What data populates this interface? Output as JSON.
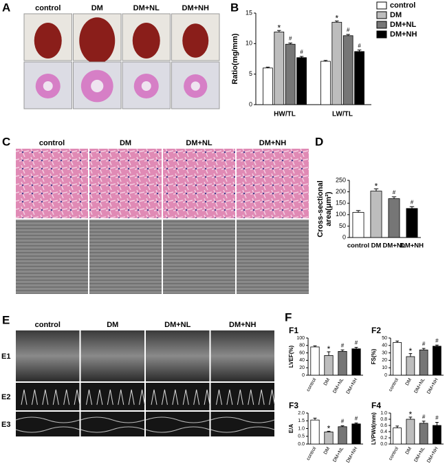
{
  "images": [
    {
      "panel": "A",
      "columns": [
        "control",
        "DM",
        "DM+NL",
        "DM+NH"
      ]
    },
    {
      "panel": "C",
      "columns": [
        "control",
        "DM",
        "DM+NL",
        "DM+NH"
      ]
    },
    {
      "panel": "E",
      "columns": [
        "control",
        "DM",
        "DM+NL",
        "DM+NH"
      ],
      "rows": [
        "E1",
        "E2",
        "E3"
      ]
    }
  ],
  "chart_data": [
    {
      "panel": "B",
      "type": "bar",
      "ylabel": [
        "Ratio(mg/mm)"
      ],
      "categories": [
        "HW/TL",
        "LW/TL"
      ],
      "series": [
        {
          "name": "control",
          "color": "#ffffff",
          "values": [
            6.0,
            7.1
          ],
          "errors": [
            0.15,
            0.15
          ]
        },
        {
          "name": "DM",
          "color": "#bdbdbd",
          "values": [
            11.9,
            13.5
          ],
          "errors": [
            0.25,
            0.2
          ],
          "annotations": [
            "*",
            "*"
          ]
        },
        {
          "name": "DM+NL",
          "color": "#767676",
          "values": [
            9.9,
            11.3
          ],
          "errors": [
            0.2,
            0.2
          ],
          "annotations": [
            "#",
            "#"
          ]
        },
        {
          "name": "DM+NH",
          "color": "#000000",
          "values": [
            7.7,
            8.7
          ],
          "errors": [
            0.2,
            0.25
          ],
          "annotations": [
            "#",
            "#"
          ]
        }
      ],
      "ylim": [
        0,
        15
      ],
      "yticks": [
        0,
        5,
        10,
        15
      ],
      "legend": "right"
    },
    {
      "panel": "D",
      "type": "bar",
      "ylabel": [
        "Cross-sectional",
        "area(μm²)"
      ],
      "categories": [
        "control",
        "DM",
        "DM+NL",
        "DM+NH"
      ],
      "values": [
        110,
        203,
        170,
        127
      ],
      "errors": [
        8,
        10,
        8,
        8
      ],
      "annotations": [
        null,
        "*",
        "#",
        "#"
      ],
      "colors": [
        "#ffffff",
        "#bdbdbd",
        "#767676",
        "#000000"
      ],
      "ylim": [
        0,
        250
      ],
      "yticks": [
        0,
        50,
        100,
        150,
        200,
        250
      ]
    },
    {
      "panel": "F",
      "title": "F1",
      "type": "bar",
      "ylabel": [
        "LVEF(%)"
      ],
      "categories": [
        "control",
        "DM",
        "DM+NL",
        "DM+NH"
      ],
      "values": [
        76,
        53,
        64,
        71
      ],
      "errors": [
        3,
        10,
        4,
        4
      ],
      "annotations": [
        null,
        "*",
        "#",
        "#"
      ],
      "colors": [
        "#ffffff",
        "#bdbdbd",
        "#767676",
        "#000000"
      ],
      "ylim": [
        0,
        100
      ],
      "yticks": [
        0,
        20,
        40,
        60,
        80,
        100
      ]
    },
    {
      "title": "F2",
      "type": "bar",
      "ylabel": [
        "FS(%)"
      ],
      "categories": [
        "control",
        "DM",
        "DM+NL",
        "DM+NH"
      ],
      "values": [
        44,
        25,
        34,
        39
      ],
      "errors": [
        2,
        4,
        2,
        1.5
      ],
      "annotations": [
        null,
        "*",
        "#",
        "#"
      ],
      "colors": [
        "#ffffff",
        "#bdbdbd",
        "#767676",
        "#000000"
      ],
      "ylim": [
        0,
        50
      ],
      "yticks": [
        0,
        10,
        20,
        30,
        40,
        50
      ]
    },
    {
      "title": "F3",
      "type": "bar",
      "ylabel": [
        "E/A"
      ],
      "categories": [
        "control",
        "DM",
        "DM+NL",
        "DM+NH"
      ],
      "values": [
        1.55,
        0.78,
        1.12,
        1.3
      ],
      "errors": [
        0.12,
        0.05,
        0.06,
        0.06
      ],
      "annotations": [
        null,
        "*",
        "#",
        "#"
      ],
      "colors": [
        "#ffffff",
        "#bdbdbd",
        "#767676",
        "#000000"
      ],
      "ylim": [
        0,
        2.0
      ],
      "yticks": [
        {
          "value": 0,
          "label": "0.0"
        },
        0.5,
        {
          "value": 1,
          "label": "1.0"
        },
        1.5,
        {
          "value": 2,
          "label": "2.0"
        }
      ]
    },
    {
      "title": "F4",
      "type": "bar",
      "ylabel": [
        "LVPWd(mm)"
      ],
      "categories": [
        "control",
        "DM",
        "DM+NL",
        "DM+NH"
      ],
      "values": [
        0.52,
        0.8,
        0.67,
        0.6
      ],
      "errors": [
        0.06,
        0.07,
        0.07,
        0.1
      ],
      "annotations": [
        null,
        "*",
        "#",
        "#"
      ],
      "colors": [
        "#ffffff",
        "#bdbdbd",
        "#767676",
        "#000000"
      ],
      "ylim": [
        0,
        1.0
      ],
      "yticks": [
        {
          "value": 0,
          "label": "0.0"
        },
        0.2,
        0.4,
        0.6,
        0.8,
        {
          "value": 1,
          "label": "1.0"
        }
      ]
    }
  ]
}
